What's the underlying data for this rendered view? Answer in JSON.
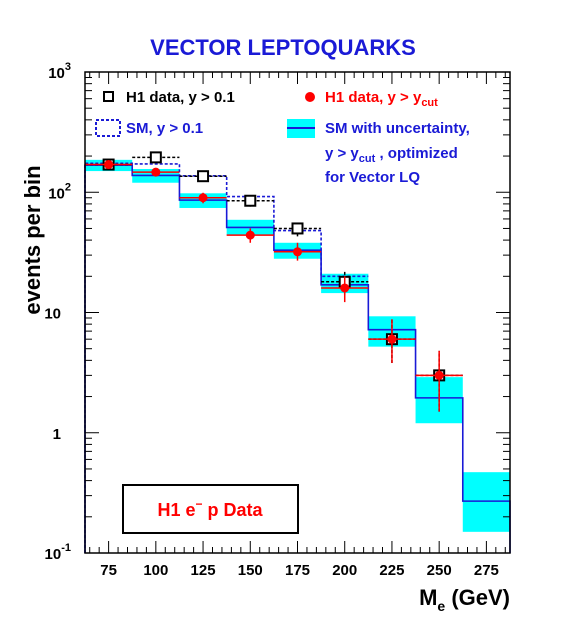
{
  "chart_data": {
    "type": "bar",
    "title": "VECTOR LEPTOQUARKS",
    "xlabel": "M",
    "xlabel_sub": "e",
    "xlabel_unit": " (GeV)",
    "ylabel": "events per bin",
    "y_scale": "log",
    "xlim": [
      62.5,
      287.5
    ],
    "ylim": [
      0.1,
      1000
    ],
    "x_ticks": [
      75,
      100,
      125,
      150,
      175,
      200,
      225,
      250,
      275
    ],
    "y_ticks": [
      {
        "value": 0.1,
        "base": "10",
        "exp": "-1"
      },
      {
        "value": 1,
        "base": "1",
        "exp": ""
      },
      {
        "value": 10,
        "base": "10",
        "exp": ""
      },
      {
        "value": 100,
        "base": "10",
        "exp": "2"
      },
      {
        "value": 1000,
        "base": "10",
        "exp": "3"
      }
    ],
    "bin_edges": [
      62.5,
      87.5,
      112.5,
      137.5,
      162.5,
      187.5,
      212.5,
      237.5,
      262.5,
      287.5
    ],
    "series": [
      {
        "kind": "sm_cut_band",
        "values": [
          168,
          138,
          86,
          51,
          33,
          17,
          7.2,
          1.95,
          0.27
        ],
        "band_low": [
          150,
          120,
          74,
          44,
          28,
          14.5,
          5.2,
          1.2,
          0.15
        ],
        "band_high": [
          186,
          156,
          98,
          59,
          38,
          21,
          9.3,
          2.9,
          0.47
        ]
      },
      {
        "kind": "sm_all_dashed",
        "values": [
          174,
          172,
          137,
          92,
          48,
          20
        ]
      },
      {
        "kind": "data_all",
        "x": [
          75,
          100,
          125,
          150,
          175,
          200,
          225,
          250
        ],
        "y": [
          170,
          195,
          136,
          85,
          50,
          18,
          6.0,
          3.0
        ],
        "err_low": [
          157,
          181,
          124,
          76,
          43,
          14,
          3.8,
          1.5
        ],
        "err_high": [
          183,
          209,
          148,
          94,
          57,
          22,
          8.8,
          4.8
        ]
      },
      {
        "kind": "data_cut",
        "x": [
          75,
          100,
          125,
          150,
          175,
          200,
          225,
          250
        ],
        "y": [
          170,
          147,
          90,
          44,
          32,
          16,
          6.0,
          3.0
        ],
        "err_low": [
          157,
          135,
          81,
          38,
          27,
          12.2,
          3.8,
          1.5
        ],
        "err_high": [
          183,
          159,
          99,
          50,
          38,
          20,
          8.8,
          4.8
        ]
      }
    ],
    "legend": {
      "data_all_text": "H1 data, y > 0.1",
      "data_cut_text": "H1 data, y > y",
      "data_cut_sub": "cut",
      "sm_all_text": "SM, y > 0.1",
      "sm_band_line1": "SM with uncertainty,",
      "sm_band_line2": "y > y",
      "sm_band_line2_sub": "cut",
      "sm_band_line2_end": " , optimized",
      "sm_band_line3": "for Vector LQ"
    },
    "annotation": {
      "text_a": "H1 e",
      "text_sup": "−",
      "text_b": " p Data"
    },
    "colors": {
      "title": "#1a1ad6",
      "band": "#00ffff",
      "sm_line": "#1a1ad6",
      "sm_dashed": "#1a1ad6",
      "data_cut": "#ff0000",
      "data_all": "#000000",
      "axis": "#000000",
      "legend_red": "#ff0000",
      "legend_blue": "#1a1ad6",
      "annotation_text": "#ff0000"
    }
  }
}
